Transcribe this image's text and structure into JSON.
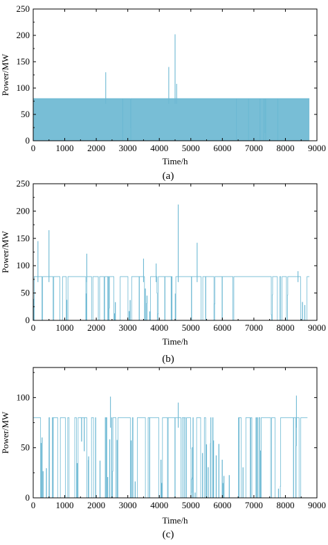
{
  "chart_data": [
    {
      "type": "line",
      "panel_label": "(a)",
      "xlabel": "Time/h",
      "ylabel": "Power/MW",
      "xlim": [
        0,
        9000
      ],
      "ylim": [
        0,
        250
      ],
      "xticks": [
        0,
        1000,
        2000,
        3000,
        4000,
        5000,
        6000,
        7000,
        8000,
        9000
      ],
      "yticks": [
        0,
        50,
        100,
        150,
        200,
        250
      ],
      "series_color": "#6cb8d3",
      "x_extent": [
        0,
        8760
      ],
      "base_level": 80,
      "pattern": "mostly continuous 80 MW plateau with few drops to zero concentrated after 7000 h",
      "peaks": [
        {
          "x": 2300,
          "y": 130
        },
        {
          "x": 4300,
          "y": 140
        },
        {
          "x": 4500,
          "y": 202
        },
        {
          "x": 4550,
          "y": 108
        }
      ]
    },
    {
      "type": "line",
      "panel_label": "(b)",
      "xlabel": "Time/h",
      "ylabel": "Power/MW",
      "xlim": [
        0,
        9000
      ],
      "ylim": [
        0,
        250
      ],
      "xticks": [
        0,
        1000,
        2000,
        3000,
        4000,
        5000,
        6000,
        7000,
        8000,
        9000
      ],
      "yticks": [
        0,
        50,
        100,
        150,
        200,
        250
      ],
      "series_color": "#6cb8d3",
      "x_extent": [
        0,
        8760
      ],
      "base_level": 80,
      "pattern": "80 MW plateau interrupted by frequent drops to zero throughout the year",
      "peaks": [
        {
          "x": 150,
          "y": 145
        },
        {
          "x": 500,
          "y": 165
        },
        {
          "x": 1700,
          "y": 122
        },
        {
          "x": 3500,
          "y": 113
        },
        {
          "x": 3900,
          "y": 104
        },
        {
          "x": 4600,
          "y": 212
        },
        {
          "x": 5200,
          "y": 142
        },
        {
          "x": 8400,
          "y": 90
        }
      ]
    },
    {
      "type": "line",
      "panel_label": "(c)",
      "xlabel": "Time/h",
      "ylabel": "Power/MW",
      "xlim": [
        0,
        9000
      ],
      "ylim": [
        0,
        130
      ],
      "xticks": [
        0,
        1000,
        2000,
        3000,
        4000,
        5000,
        6000,
        7000,
        8000,
        9000
      ],
      "yticks": [
        0,
        50,
        100
      ],
      "series_color": "#6cb8d3",
      "x_extent": [
        0,
        8700
      ],
      "base_level": 80,
      "pattern": "80 MW plateau with long stretches at zero and very frequent switching",
      "peaks": [
        {
          "x": 2450,
          "y": 101
        },
        {
          "x": 4600,
          "y": 95
        },
        {
          "x": 8350,
          "y": 102
        }
      ]
    }
  ]
}
